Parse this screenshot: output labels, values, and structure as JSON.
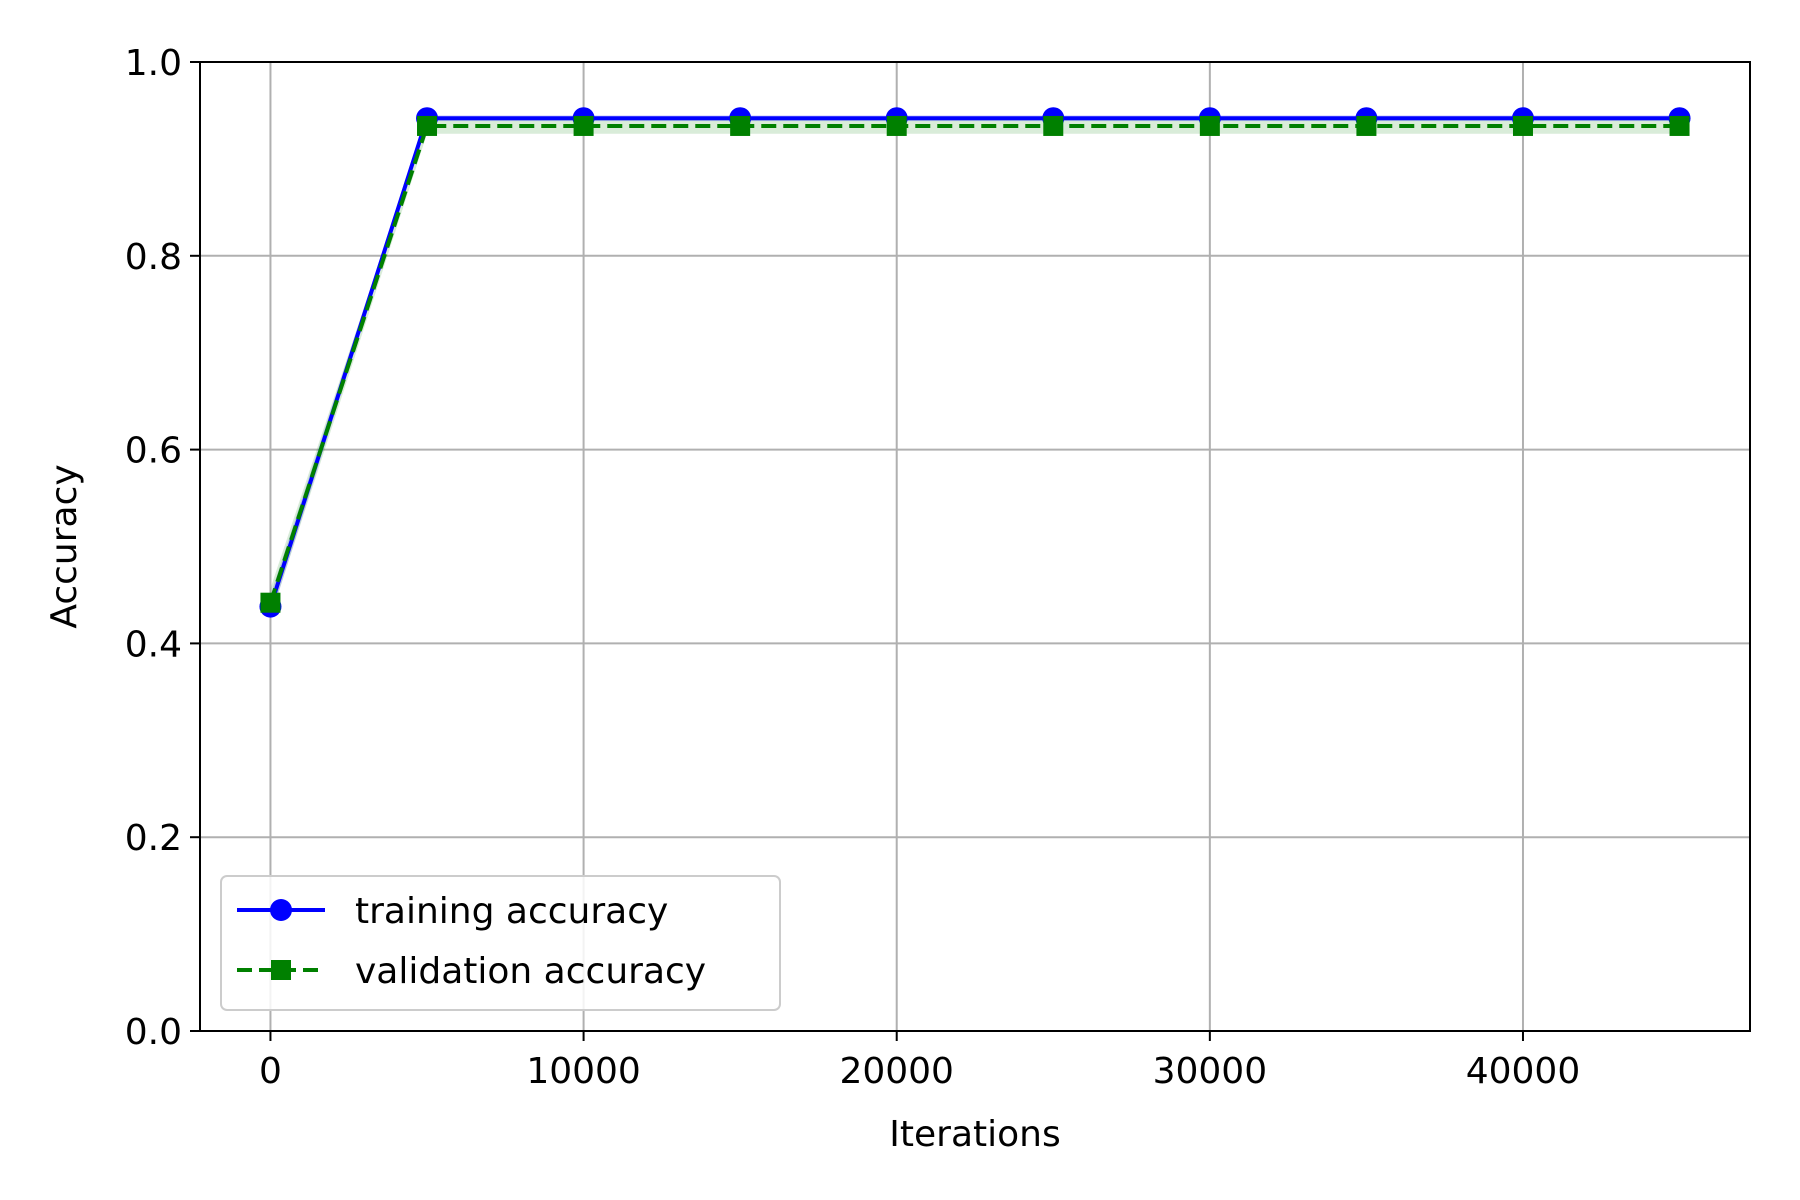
{
  "chart_data": {
    "type": "line",
    "title": "",
    "xlabel": "Iterations",
    "ylabel": "Accuracy",
    "xlim": [
      -2250,
      47250
    ],
    "ylim": [
      0.0,
      1.0
    ],
    "x": [
      0,
      5000,
      10000,
      15000,
      20000,
      25000,
      30000,
      35000,
      40000,
      45000
    ],
    "xticks": [
      0,
      10000,
      20000,
      30000,
      40000
    ],
    "xtick_labels": [
      "0",
      "10000",
      "20000",
      "30000",
      "40000"
    ],
    "yticks": [
      0.0,
      0.2,
      0.4,
      0.6,
      0.8,
      1.0
    ],
    "ytick_labels": [
      "0.0",
      "0.2",
      "0.4",
      "0.6",
      "0.8",
      "1.0"
    ],
    "grid": true,
    "legend_position": "lower-left",
    "series": [
      {
        "name": "training accuracy",
        "color": "#0000ff",
        "band_color": "#0000ff",
        "line_style": "solid",
        "marker": "circle",
        "values": [
          0.438,
          0.942,
          0.942,
          0.942,
          0.942,
          0.942,
          0.942,
          0.942,
          0.942,
          0.942
        ],
        "band": [
          0.012,
          0.003,
          0.003,
          0.003,
          0.003,
          0.003,
          0.003,
          0.003,
          0.003,
          0.003
        ]
      },
      {
        "name": "validation accuracy",
        "color": "#008000",
        "band_color": "#008000",
        "line_style": "dashed",
        "marker": "square",
        "values": [
          0.442,
          0.934,
          0.934,
          0.934,
          0.934,
          0.934,
          0.934,
          0.934,
          0.934,
          0.934
        ],
        "band": [
          0.015,
          0.008,
          0.008,
          0.008,
          0.008,
          0.008,
          0.008,
          0.008,
          0.008,
          0.008
        ]
      }
    ]
  }
}
